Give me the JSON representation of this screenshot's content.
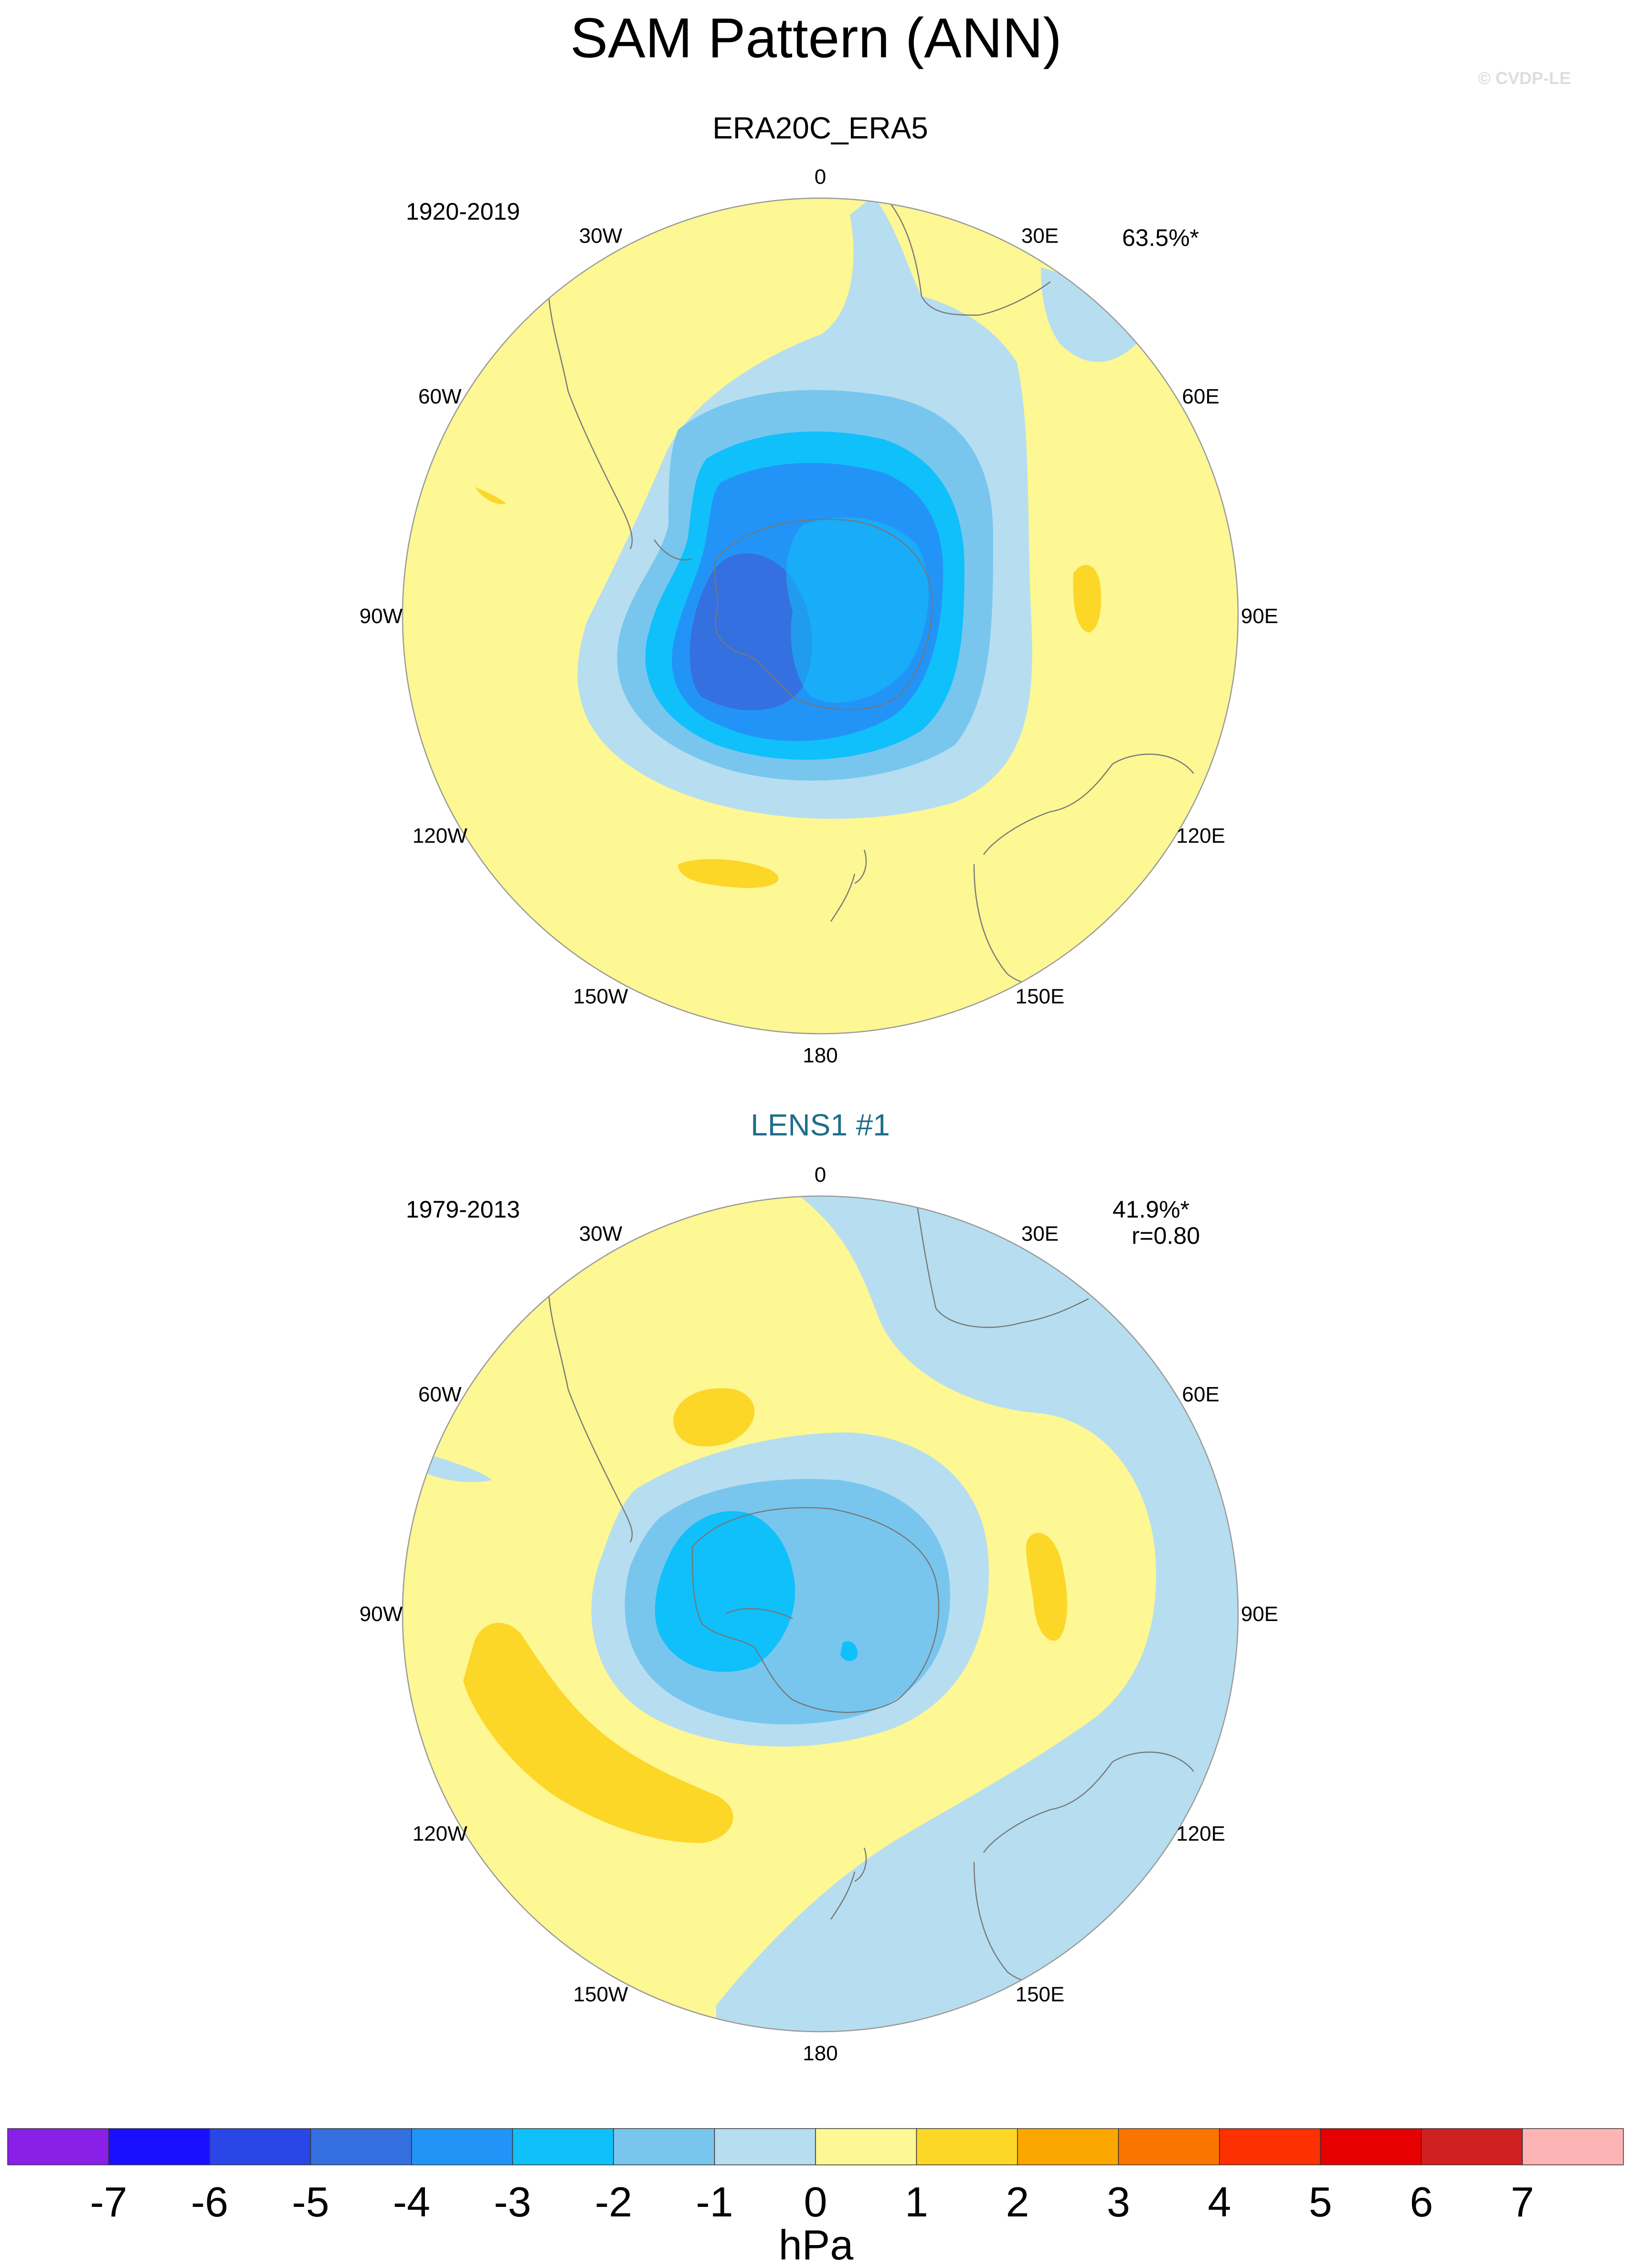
{
  "figure": {
    "title": "SAM Pattern (ANN)",
    "copyright": "© CVDP-LE"
  },
  "colors": {
    "land_outline": "#777777",
    "map_border": "#9a9a9a"
  },
  "chart_data": [
    {
      "type": "heatmap",
      "projection": "south-polar-stereographic",
      "title": "ERA20C_ERA5",
      "period": "1920-2019",
      "pct_variance": "63.5%*",
      "pattern_corr": "",
      "longitude_labels": [
        "0",
        "30E",
        "60E",
        "90E",
        "120E",
        "150E",
        "180",
        "150W",
        "120W",
        "90W",
        "60W",
        "30W"
      ],
      "background_level": "0 to 1",
      "regions": [
        {
          "level": "-1 to 0",
          "where": "ring around Antarctica and southeast Atlantic"
        },
        {
          "level": "-2 to -1",
          "where": "ring over Southern Ocean"
        },
        {
          "level": "-3 to -2",
          "where": "inner ring"
        },
        {
          "level": "-4 to -3",
          "where": "over Antarctica"
        },
        {
          "level": "-5 to -4",
          "where": "West Antarctica / Ross Sea core"
        },
        {
          "level": "1 to 2",
          "where": "south Indian Ocean (~90E) and south of New Zealand (~160W)"
        }
      ]
    },
    {
      "type": "heatmap",
      "projection": "south-polar-stereographic",
      "title": "LENS1 #1",
      "period": "1979-2013",
      "pct_variance": "41.9%*",
      "pattern_corr": "r=0.80",
      "longitude_labels": [
        "0",
        "30E",
        "60E",
        "90E",
        "120E",
        "150E",
        "180",
        "150W",
        "120W",
        "90W",
        "60W",
        "30W"
      ],
      "background_level": "0 to 1",
      "regions": [
        {
          "level": "-1 to 0",
          "where": "broad band from South Atlantic through Indian Ocean to Pacific south of New Zealand"
        },
        {
          "level": "-2 to -1",
          "where": "over East Antarctica"
        },
        {
          "level": "-3 to -2",
          "where": "West Antarctica core"
        },
        {
          "level": "1 to 2",
          "where": "southeast Pacific (~110W), South Atlantic (~40W) and Indian Ocean (~80E)"
        }
      ]
    }
  ],
  "colorbar": {
    "unit": "hPa",
    "tick_labels": [
      "-7",
      "-6",
      "-5",
      "-4",
      "-3",
      "-2",
      "-1",
      "0",
      "1",
      "2",
      "3",
      "4",
      "5",
      "6",
      "7"
    ],
    "levels": [
      -7,
      -6,
      -5,
      -4,
      -3,
      -2,
      -1,
      0,
      1,
      2,
      3,
      4,
      5,
      6,
      7
    ],
    "colors": [
      "#8a1fe8",
      "#1a10ff",
      "#2a46e6",
      "#3570e0",
      "#2294f8",
      "#10c0fa",
      "#78c6ee",
      "#b6def0",
      "#fdf794",
      "#fcd728",
      "#fca600",
      "#fc7400",
      "#fc3000",
      "#e70000",
      "#d02020",
      "#fcb4b4"
    ]
  }
}
